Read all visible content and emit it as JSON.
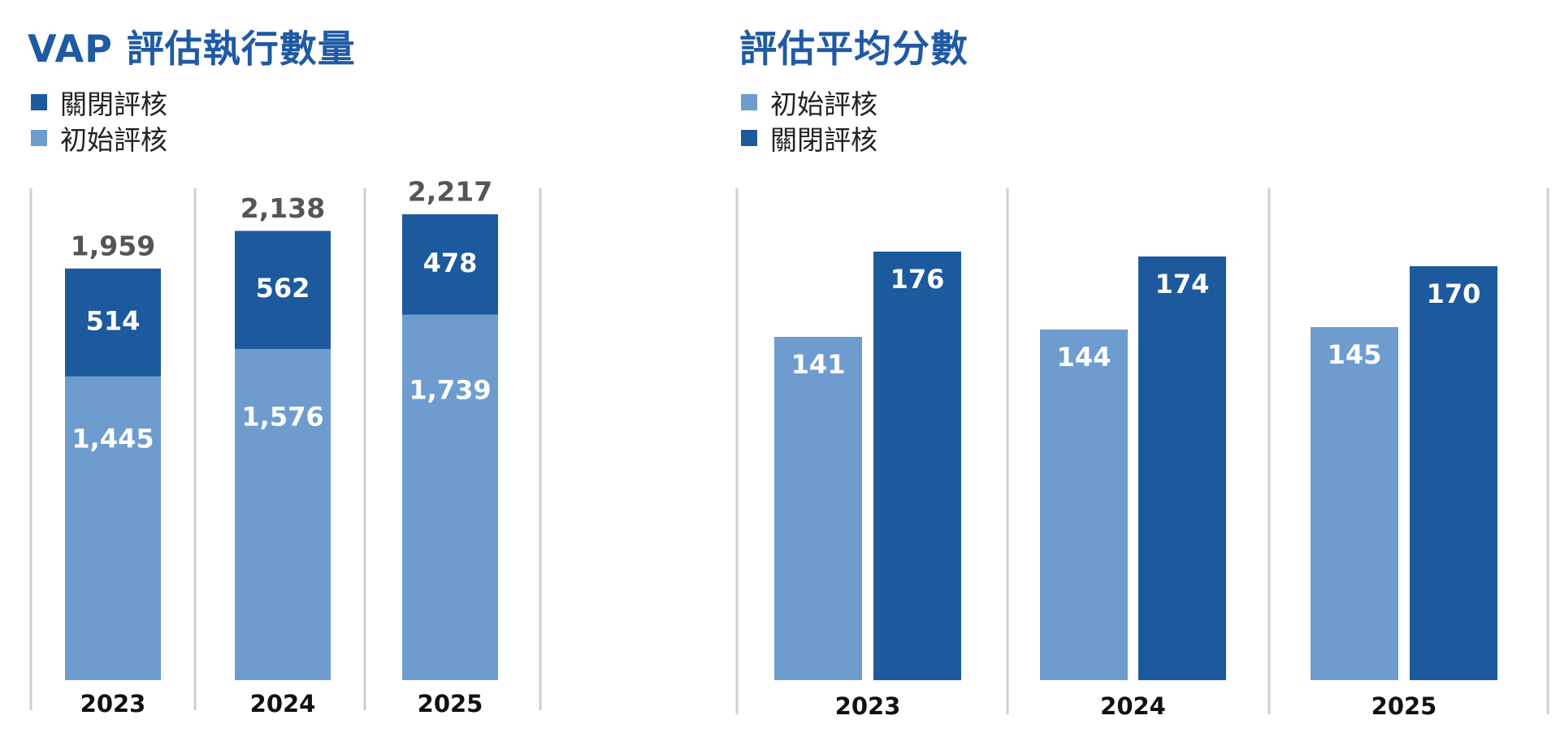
{
  "colors": {
    "light": "#6e9ccf",
    "dark": "#1d5a9d",
    "title": "#1f5aa3",
    "divider": "#cfcfcf",
    "total_label": "#555555"
  },
  "chart_data": [
    {
      "type": "bar",
      "stacked": true,
      "title": "VAP 評估執行數量",
      "legend": [
        "關閉評核",
        "初始評核"
      ],
      "legend_position": "top-left",
      "categories": [
        "2023",
        "2024",
        "2025"
      ],
      "series": [
        {
          "name": "初始評核",
          "values": [
            1445,
            1576,
            1739
          ],
          "labels": [
            "1,445",
            "1,576",
            "1,739"
          ],
          "color": "#6e9ccf"
        },
        {
          "name": "關閉評核",
          "values": [
            514,
            562,
            478
          ],
          "labels": [
            "514",
            "562",
            "478"
          ],
          "color": "#1d5a9d"
        }
      ],
      "totals": [
        1959,
        2138,
        2217
      ],
      "total_labels": [
        "1,959",
        "2,138",
        "2,217"
      ],
      "grid": false
    },
    {
      "type": "bar",
      "stacked": false,
      "title": "評估平均分數",
      "legend": [
        "初始評核",
        "關閉評核"
      ],
      "legend_position": "top-left",
      "categories": [
        "2023",
        "2024",
        "2025"
      ],
      "series": [
        {
          "name": "初始評核",
          "values": [
            141,
            144,
            145
          ],
          "color": "#6e9ccf"
        },
        {
          "name": "關閉評核",
          "values": [
            176,
            174,
            170
          ],
          "color": "#1d5a9d"
        }
      ],
      "grid": false
    }
  ]
}
